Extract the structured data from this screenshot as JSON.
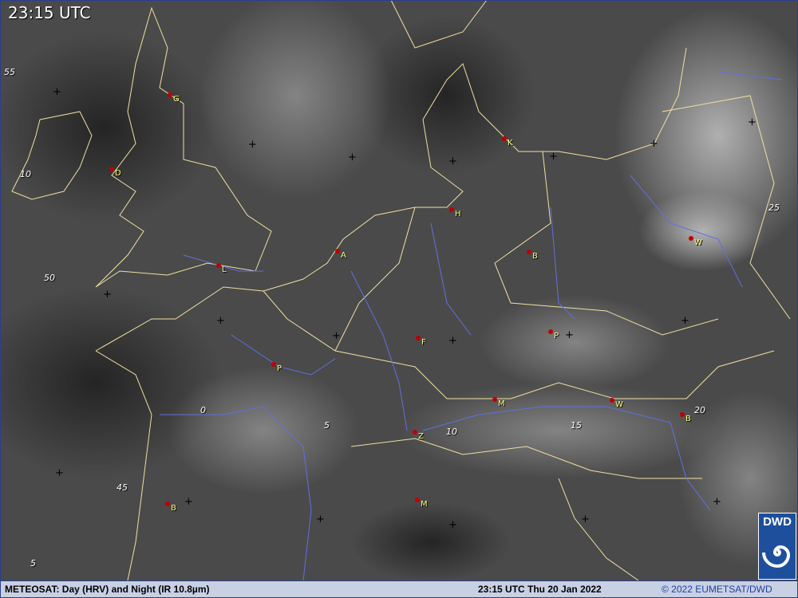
{
  "header": {
    "time": "23:15 UTC"
  },
  "footer": {
    "product": "METEOSAT: Day (HRV) and Night (IR 10.8µm)",
    "datetime": "23:15 UTC Thu 20 Jan 2022",
    "copyright": "© 2022 EUMETSAT/DWD"
  },
  "logo": {
    "text": "DWD"
  },
  "grid_labels": [
    "55",
    "10",
    "50",
    "25",
    "0",
    "5",
    "10",
    "15",
    "20",
    "45",
    "5"
  ],
  "cities": [
    "G",
    "D",
    "L",
    "A",
    "H",
    "K",
    "B",
    "W",
    "P",
    "F",
    "P",
    "M",
    "W",
    "B",
    "Z",
    "M",
    "B"
  ],
  "colors": {
    "coastline": "#f0e0a0",
    "rivers": "#6070e0",
    "city_marker": "#c00000",
    "city_label": "#ffff80",
    "footer_bg": "#c8d0e4",
    "logo_bg": "#1d4f9c"
  }
}
